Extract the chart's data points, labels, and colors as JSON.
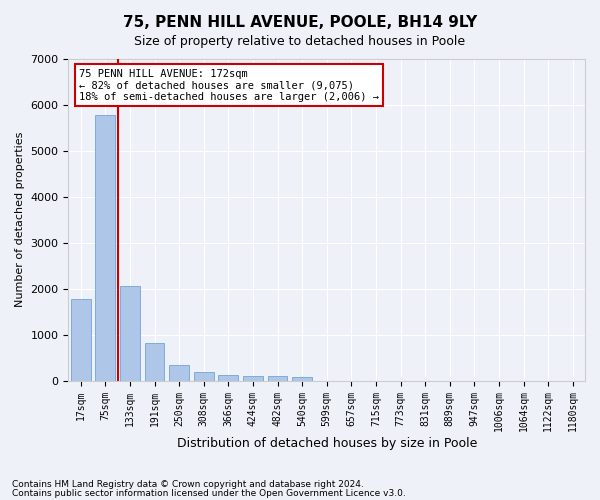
{
  "title": "75, PENN HILL AVENUE, POOLE, BH14 9LY",
  "subtitle": "Size of property relative to detached houses in Poole",
  "xlabel": "Distribution of detached houses by size in Poole",
  "ylabel": "Number of detached properties",
  "bin_labels": [
    "17sqm",
    "75sqm",
    "133sqm",
    "191sqm",
    "250sqm",
    "308sqm",
    "366sqm",
    "424sqm",
    "482sqm",
    "540sqm",
    "599sqm",
    "657sqm",
    "715sqm",
    "773sqm",
    "831sqm",
    "889sqm",
    "947sqm",
    "1006sqm",
    "1064sqm",
    "1122sqm",
    "1180sqm"
  ],
  "bar_values": [
    1780,
    5780,
    2060,
    820,
    340,
    190,
    120,
    100,
    95,
    80,
    0,
    0,
    0,
    0,
    0,
    0,
    0,
    0,
    0,
    0,
    0
  ],
  "bar_color": "#aec6e8",
  "bar_edge_color": "#5a9ad4",
  "annotation_title": "75 PENN HILL AVENUE: 172sqm",
  "annotation_line1": "← 82% of detached houses are smaller (9,075)",
  "annotation_line2": "18% of semi-detached houses are larger (2,006) →",
  "ylim": [
    0,
    7000
  ],
  "yticks": [
    0,
    1000,
    2000,
    3000,
    4000,
    5000,
    6000,
    7000
  ],
  "footnote1": "Contains HM Land Registry data © Crown copyright and database right 2024.",
  "footnote2": "Contains public sector information licensed under the Open Government Licence v3.0.",
  "bg_color": "#eef2f8",
  "plot_bg_color": "#eef2f8",
  "grid_color": "#ffffff",
  "vline_x": 1.5,
  "vline_color": "#cc0000",
  "annotation_box_color": "#cc0000"
}
